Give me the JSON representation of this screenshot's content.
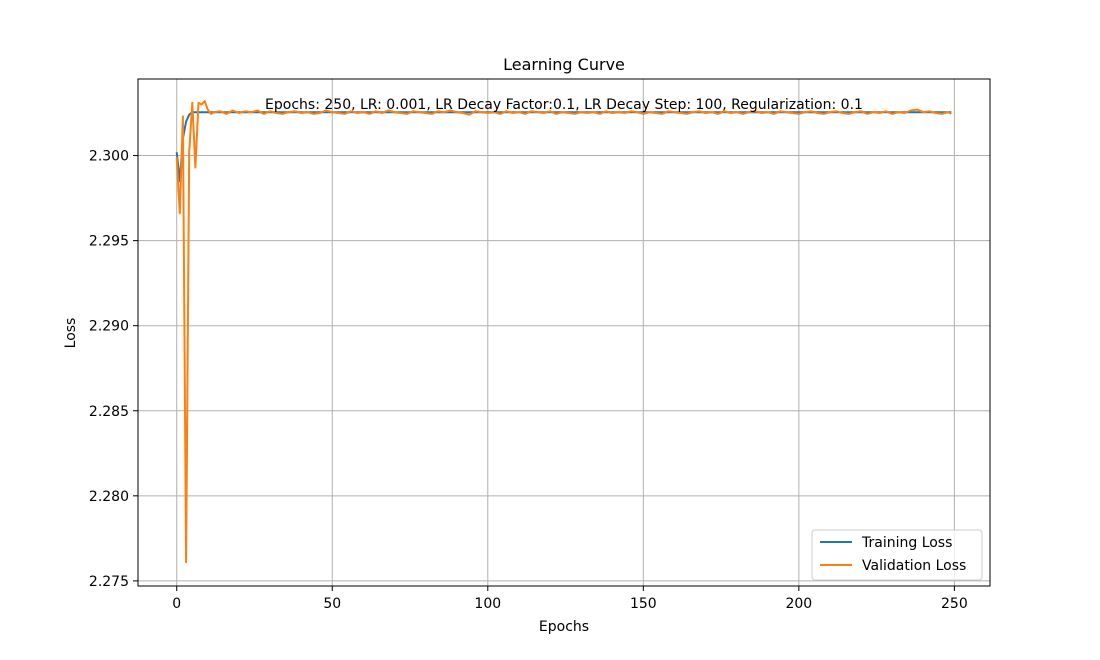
{
  "chart_data": {
    "type": "line",
    "title": "Learning Curve",
    "annotation": "Epochs: 250, LR: 0.001, LR Decay Factor:0.1, LR Decay Step: 100, Regularization: 0.1",
    "xlabel": "Epochs",
    "ylabel": "Loss",
    "xlim": [
      -12.45,
      261.45
    ],
    "ylim": [
      2.2747,
      2.3045
    ],
    "xticks": [
      0,
      50,
      100,
      150,
      200,
      250
    ],
    "xtick_labels": [
      "0",
      "50",
      "100",
      "150",
      "200",
      "250"
    ],
    "yticks": [
      2.275,
      2.28,
      2.285,
      2.29,
      2.295,
      2.3
    ],
    "ytick_labels": [
      "2.275",
      "2.280",
      "2.285",
      "2.290",
      "2.295",
      "2.300"
    ],
    "grid": true,
    "legend_position": "lower-right",
    "series": [
      {
        "name": "Training Loss",
        "color": "#1f77b4",
        "x": [
          0,
          1,
          2,
          3,
          4,
          5,
          6,
          7,
          8,
          10,
          20,
          40,
          60,
          80,
          100,
          120,
          140,
          160,
          180,
          200,
          220,
          240,
          249
        ],
        "y": [
          2.3002,
          2.2985,
          2.301,
          2.302,
          2.3024,
          2.30255,
          2.30255,
          2.30255,
          2.30255,
          2.30255,
          2.30255,
          2.30255,
          2.30255,
          2.30255,
          2.30255,
          2.30255,
          2.30255,
          2.30255,
          2.30255,
          2.30255,
          2.30255,
          2.30255,
          2.30255
        ]
      },
      {
        "name": "Validation Loss",
        "color": "#ff7f0e",
        "x": [
          0,
          1,
          2,
          3,
          4,
          5,
          6,
          7,
          8,
          9,
          10,
          11,
          12,
          14,
          16,
          18,
          20,
          22,
          24,
          26,
          28,
          30,
          32,
          34,
          36,
          38,
          40,
          42,
          44,
          46,
          48,
          50,
          52,
          54,
          56,
          58,
          60,
          62,
          64,
          66,
          68,
          70,
          72,
          74,
          76,
          78,
          80,
          82,
          84,
          86,
          88,
          90,
          92,
          94,
          96,
          98,
          100,
          102,
          104,
          106,
          108,
          110,
          112,
          114,
          116,
          118,
          120,
          122,
          124,
          126,
          128,
          130,
          132,
          134,
          136,
          138,
          140,
          142,
          144,
          146,
          148,
          150,
          152,
          154,
          156,
          158,
          160,
          162,
          164,
          166,
          168,
          170,
          172,
          174,
          176,
          178,
          180,
          182,
          184,
          186,
          188,
          190,
          192,
          194,
          196,
          198,
          200,
          202,
          204,
          206,
          208,
          210,
          212,
          214,
          216,
          218,
          220,
          222,
          224,
          226,
          228,
          230,
          232,
          234,
          236,
          238,
          240,
          242,
          244,
          246,
          248,
          249
        ],
        "y": [
          2.2999,
          2.2966,
          2.3023,
          2.2761,
          2.3002,
          2.3031,
          2.2993,
          2.3031,
          2.303,
          2.3032,
          2.3027,
          2.30245,
          2.30255,
          2.3026,
          2.30245,
          2.30265,
          2.3025,
          2.3026,
          2.30255,
          2.30265,
          2.30245,
          2.3026,
          2.3025,
          2.30245,
          2.30255,
          2.3026,
          2.3025,
          2.30255,
          2.30245,
          2.3025,
          2.30265,
          2.30255,
          2.3025,
          2.30245,
          2.3026,
          2.3025,
          2.30255,
          2.30245,
          2.3026,
          2.3025,
          2.30265,
          2.30255,
          2.3025,
          2.30245,
          2.3026,
          2.30255,
          2.3025,
          2.30245,
          2.3026,
          2.30255,
          2.30265,
          2.30255,
          2.3025,
          2.3024,
          2.3026,
          2.30255,
          2.3025,
          2.30255,
          2.30245,
          2.3026,
          2.3025,
          2.30255,
          2.30245,
          2.3026,
          2.30255,
          2.3025,
          2.3026,
          2.30245,
          2.30255,
          2.3025,
          2.30245,
          2.30255,
          2.3025,
          2.30255,
          2.30245,
          2.3026,
          2.3025,
          2.30255,
          2.3025,
          2.3026,
          2.30255,
          2.30245,
          2.30255,
          2.3025,
          2.30245,
          2.3026,
          2.30255,
          2.3025,
          2.30245,
          2.30255,
          2.3026,
          2.3025,
          2.30255,
          2.30245,
          2.3026,
          2.3025,
          2.30255,
          2.30245,
          2.30255,
          2.3026,
          2.3025,
          2.30255,
          2.30245,
          2.3026,
          2.30255,
          2.3025,
          2.30245,
          2.30255,
          2.3026,
          2.3025,
          2.30245,
          2.30255,
          2.3026,
          2.3025,
          2.30245,
          2.30255,
          2.3026,
          2.30245,
          2.30255,
          2.3025,
          2.3026,
          2.30245,
          2.30255,
          2.3025,
          2.30265,
          2.3027,
          2.30255,
          2.3026,
          2.3025,
          2.30245,
          2.30255,
          2.30245
        ]
      }
    ]
  }
}
